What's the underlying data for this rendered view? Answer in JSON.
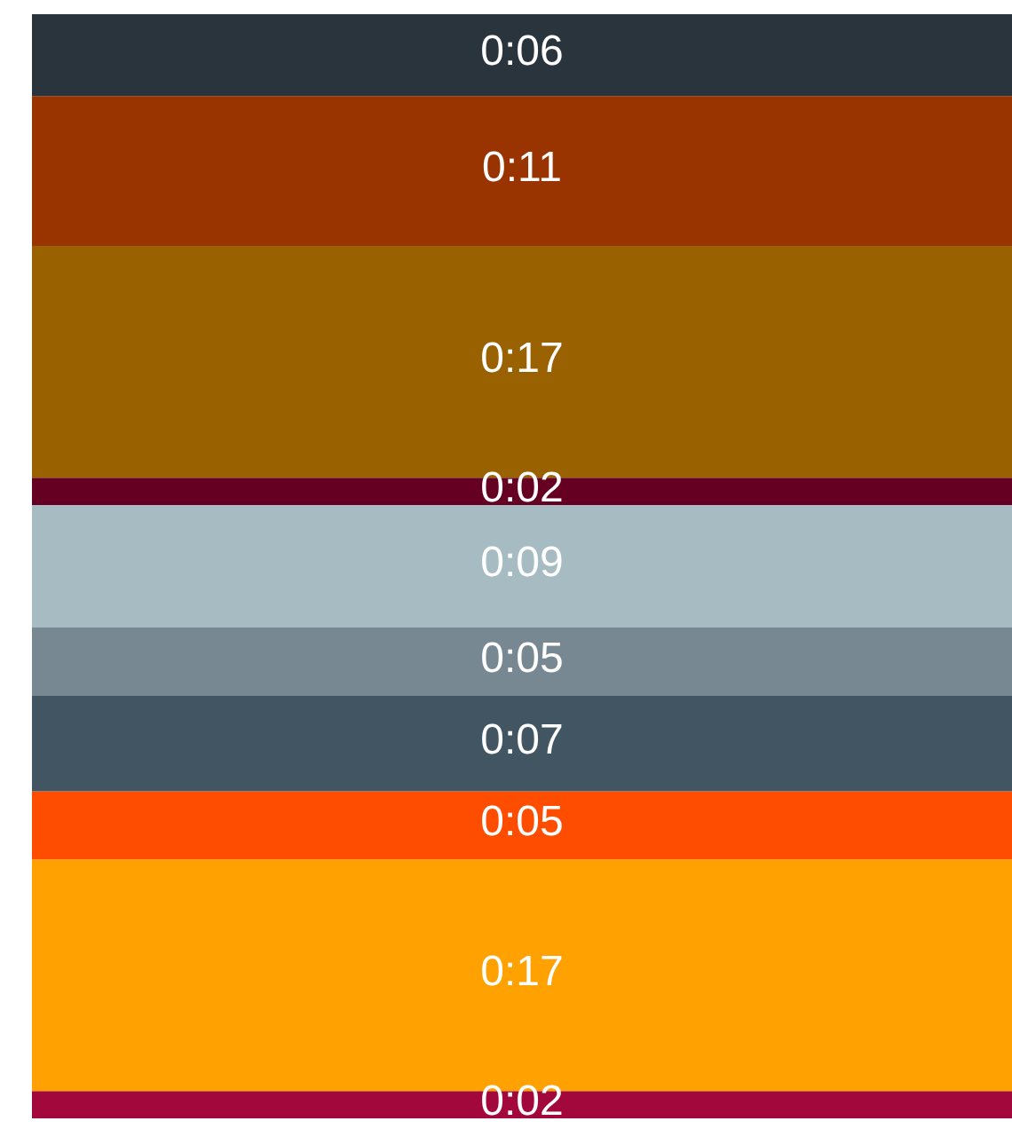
{
  "chart_data": {
    "type": "bar",
    "stacked": true,
    "categories": [
      null
    ],
    "series": [
      {
        "color": "#a3083c",
        "values": [
          2
        ],
        "value_labels": [
          "0:02"
        ]
      },
      {
        "color": "#ffa100",
        "values": [
          17
        ],
        "value_labels": [
          "0:17"
        ]
      },
      {
        "color": "#ff4d00",
        "values": [
          5
        ],
        "value_labels": [
          "0:05"
        ]
      },
      {
        "color": "#425563",
        "values": [
          7
        ],
        "value_labels": [
          "0:07"
        ]
      },
      {
        "color": "#778893",
        "values": [
          5
        ],
        "value_labels": [
          "0:05"
        ]
      },
      {
        "color": "#a6bcc2",
        "values": [
          9
        ],
        "value_labels": [
          "0:09"
        ]
      },
      {
        "color": "#660022",
        "values": [
          2
        ],
        "value_labels": [
          "0:02"
        ]
      },
      {
        "color": "#996100",
        "values": [
          17
        ],
        "value_labels": [
          "0:17"
        ]
      },
      {
        "color": "#993300",
        "values": [
          11
        ],
        "value_labels": [
          "0:11"
        ]
      },
      {
        "color": "#2a343d",
        "values": [
          6
        ],
        "value_labels": [
          "0:06"
        ]
      }
    ]
  }
}
